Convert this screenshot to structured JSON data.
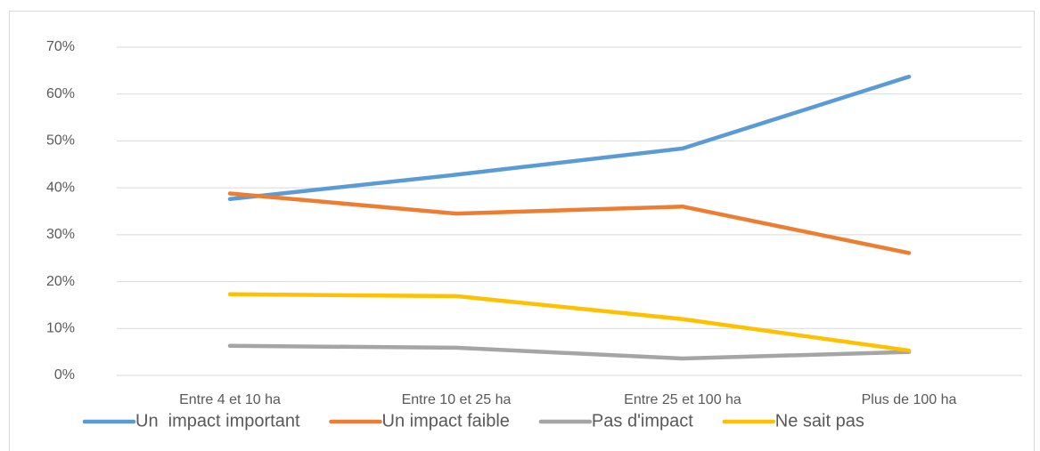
{
  "chart_data": {
    "type": "line",
    "categories": [
      "Entre 4 et 10 ha",
      "Entre 10 et 25 ha",
      "Entre 25 et 100 ha",
      "Plus de 100 ha"
    ],
    "series": [
      {
        "name": "Un  impact important",
        "color": "#5b9bd5",
        "values": [
          37.6,
          42.8,
          48.4,
          63.7
        ]
      },
      {
        "name": "Un impact faible",
        "color": "#ed7d31",
        "values": [
          38.8,
          34.5,
          36.0,
          26.1
        ]
      },
      {
        "name": "Pas d'impact",
        "color": "#a5a5a5",
        "values": [
          6.3,
          5.9,
          3.6,
          5.0
        ]
      },
      {
        "name": "Ne sait pas",
        "color": "#ffc000",
        "values": [
          17.3,
          16.9,
          12.0,
          5.3
        ]
      }
    ],
    "ylim": [
      0,
      70
    ],
    "yticks": [
      {
        "value": 0,
        "label": "0%"
      },
      {
        "value": 10,
        "label": "10%"
      },
      {
        "value": 20,
        "label": "20%"
      },
      {
        "value": 30,
        "label": "30%"
      },
      {
        "value": 40,
        "label": "40%"
      },
      {
        "value": 50,
        "label": "50%"
      },
      {
        "value": 60,
        "label": "60%"
      },
      {
        "value": 70,
        "label": "70%"
      }
    ],
    "grid": true,
    "legend": "bottom"
  }
}
